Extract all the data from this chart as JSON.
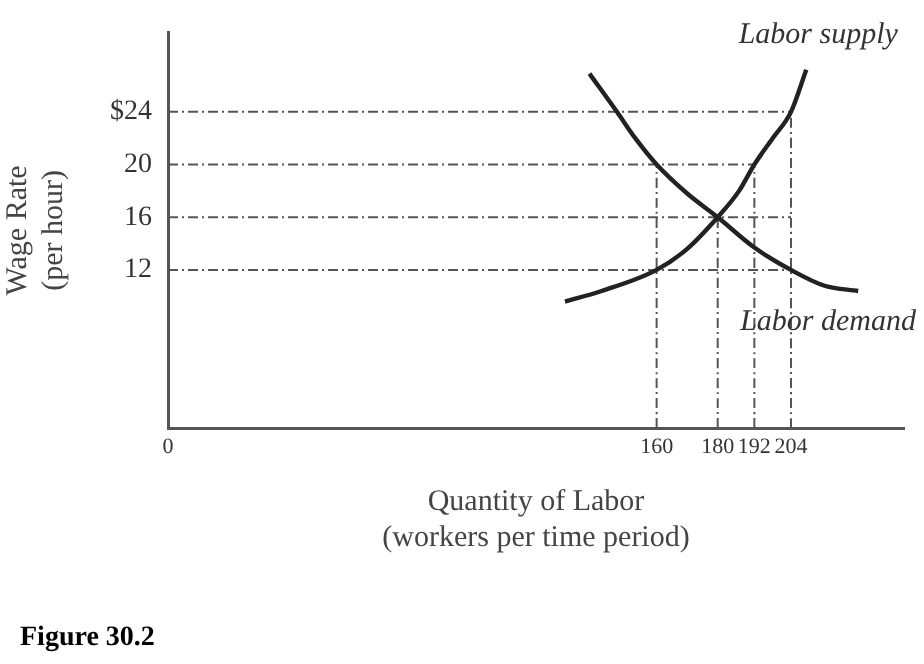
{
  "chart_data": {
    "type": "line",
    "xlabel": "Quantity of Labor\n(workers per time period)",
    "ylabel": "Wage Rate\n(per hour)",
    "xlim": [
      0,
      241
    ],
    "ylim": [
      0,
      30
    ],
    "xticks": [
      0,
      160,
      180,
      192,
      204
    ],
    "yticks": [
      12,
      16,
      20,
      {
        "value": 24,
        "label": "$24"
      }
    ],
    "grid": false,
    "legend": false,
    "marker": "none",
    "series": [
      {
        "name": "Labor supply",
        "color": "#222222",
        "x": [
          130,
          142,
          160,
          170,
          180,
          187,
          192,
          198,
          204,
          209
        ],
        "values": [
          9.6,
          10.4,
          12,
          13.6,
          16,
          18,
          20,
          22,
          24,
          27.2
        ]
      },
      {
        "name": "Labor demand",
        "color": "#222222",
        "x": [
          138,
          147,
          153,
          160,
          170,
          180,
          192,
          204,
          215,
          226
        ],
        "values": [
          26.9,
          24,
          22,
          20,
          17.8,
          16,
          13.7,
          12,
          10.8,
          10.4
        ]
      },
      {
        "color": "#555555",
        "line_style": "dashed",
        "x": [
          0,
          204
        ],
        "values": [
          24,
          24
        ]
      },
      {
        "color": "#555555",
        "line_style": "dashed",
        "x": [
          0,
          192
        ],
        "values": [
          20,
          20
        ]
      },
      {
        "color": "#555555",
        "line_style": "dashed",
        "x": [
          0,
          204
        ],
        "values": [
          16,
          16
        ]
      },
      {
        "color": "#555555",
        "line_style": "dashed",
        "x": [
          0,
          204
        ],
        "values": [
          12,
          12
        ]
      },
      {
        "color": "#555555",
        "line_style": "dashed",
        "x": [
          160,
          160
        ],
        "values": [
          0,
          20
        ]
      },
      {
        "color": "#555555",
        "line_style": "dashed",
        "x": [
          180,
          180
        ],
        "values": [
          0,
          16
        ]
      },
      {
        "color": "#555555",
        "line_style": "dashed",
        "x": [
          192,
          192
        ],
        "values": [
          0,
          20
        ]
      },
      {
        "color": "#555555",
        "line_style": "dashed",
        "x": [
          204,
          204
        ],
        "values": [
          0,
          24
        ]
      }
    ],
    "annotations": [
      "Figure 30.2"
    ]
  }
}
